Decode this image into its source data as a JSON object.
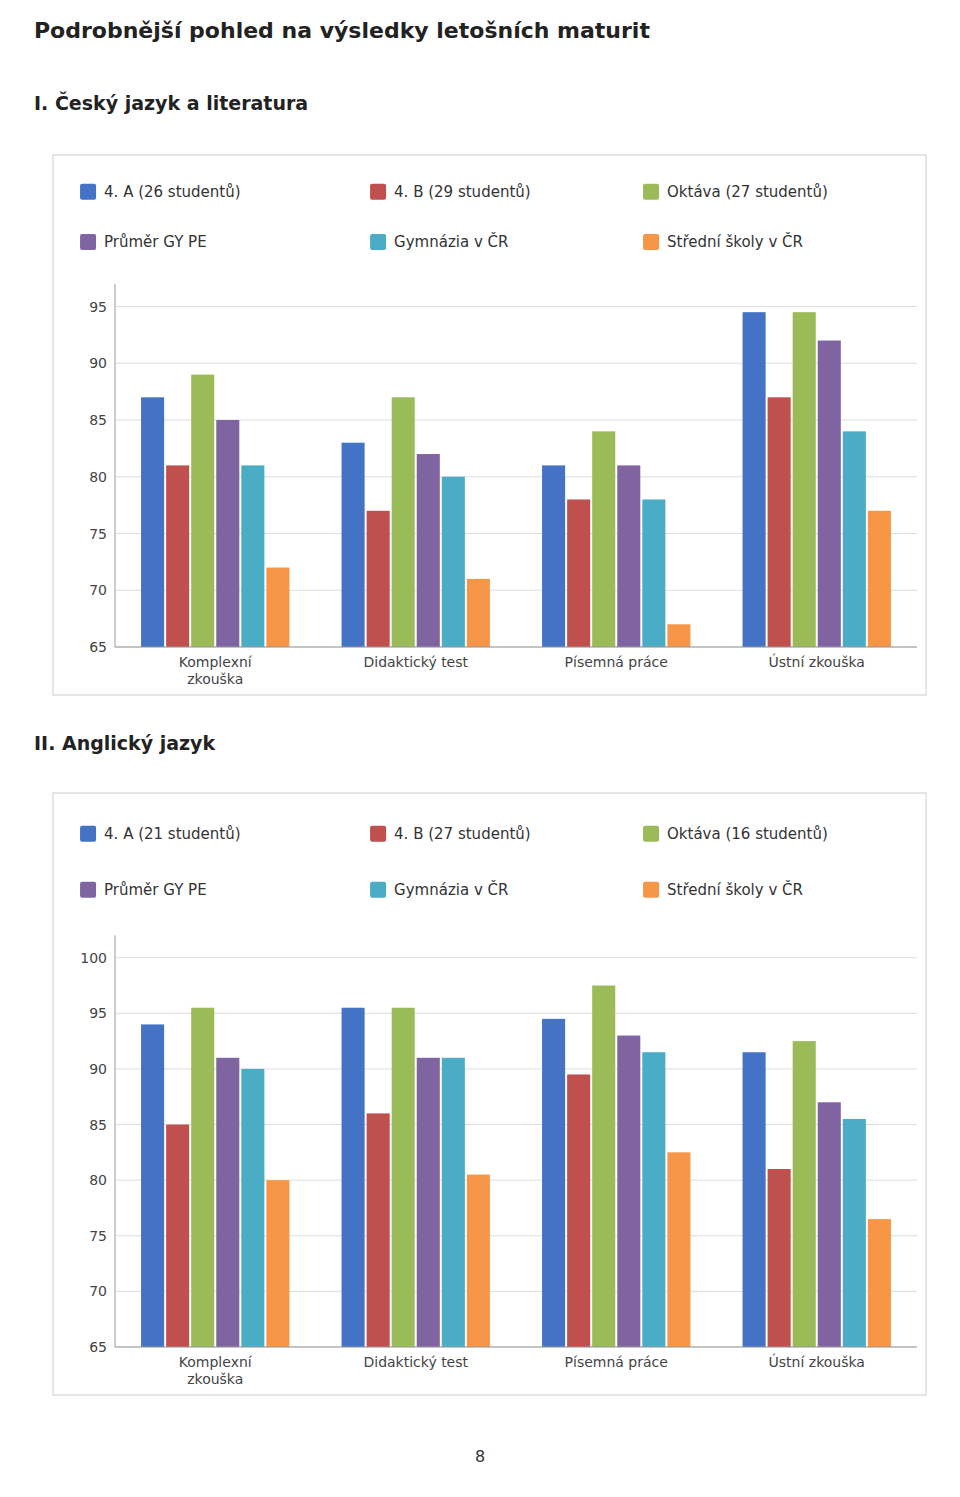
{
  "title": "Podrobnější pohled na výsledky letošních maturit",
  "annotations": [
    "8"
  ],
  "chart_data": [
    {
      "type": "bar",
      "title": "I. Český jazyk a literatura",
      "categories": [
        "Komplexní\nzkouška",
        "Didaktický test",
        "Písemná práce",
        "Ústní zkouška"
      ],
      "series": [
        {
          "name": "4. A (26 studentů)",
          "color": "#4472C4",
          "values": [
            87,
            83,
            81,
            94.5
          ]
        },
        {
          "name": "4. B (29 studentů)",
          "color": "#C0504D",
          "values": [
            81,
            77,
            78,
            87
          ]
        },
        {
          "name": "Oktáva (27 studentů)",
          "color": "#9BBB59",
          "values": [
            89,
            87,
            84,
            94.5
          ]
        },
        {
          "name": "Průměr GY PE",
          "color": "#8064A2",
          "values": [
            85,
            82,
            81,
            92
          ]
        },
        {
          "name": "Gymnázia v ČR",
          "color": "#4BACC6",
          "values": [
            81,
            80,
            78,
            84
          ]
        },
        {
          "name": "Střední školy v ČR",
          "color": "#F79646",
          "values": [
            72,
            71,
            67,
            77
          ]
        }
      ],
      "ylim": [
        65,
        97
      ],
      "yticks": [
        65,
        70,
        75,
        80,
        85,
        90,
        95
      ],
      "grid": true,
      "legend": "top"
    },
    {
      "type": "bar",
      "title": "II. Anglický jazyk",
      "categories": [
        "Komplexní\nzkouška",
        "Didaktický test",
        "Písemná práce",
        "Ústní zkouška"
      ],
      "series": [
        {
          "name": "4. A (21 studentů)",
          "color": "#4472C4",
          "values": [
            94,
            95.5,
            94.5,
            91.5
          ]
        },
        {
          "name": "4. B (27 studentů)",
          "color": "#C0504D",
          "values": [
            85,
            86,
            89.5,
            81
          ]
        },
        {
          "name": "Oktáva (16 studentů)",
          "color": "#9BBB59",
          "values": [
            95.5,
            95.5,
            97.5,
            92.5
          ]
        },
        {
          "name": "Průměr GY PE",
          "color": "#8064A2",
          "values": [
            91,
            91,
            93,
            87
          ]
        },
        {
          "name": "Gymnázia v ČR",
          "color": "#4BACC6",
          "values": [
            90,
            91,
            91.5,
            85.5
          ]
        },
        {
          "name": "Střední školy v ČR",
          "color": "#F79646",
          "values": [
            80,
            80.5,
            82.5,
            76.5
          ]
        }
      ],
      "ylim": [
        65,
        102
      ],
      "yticks": [
        65,
        70,
        75,
        80,
        85,
        90,
        95,
        100
      ],
      "grid": true,
      "legend": "top"
    }
  ]
}
